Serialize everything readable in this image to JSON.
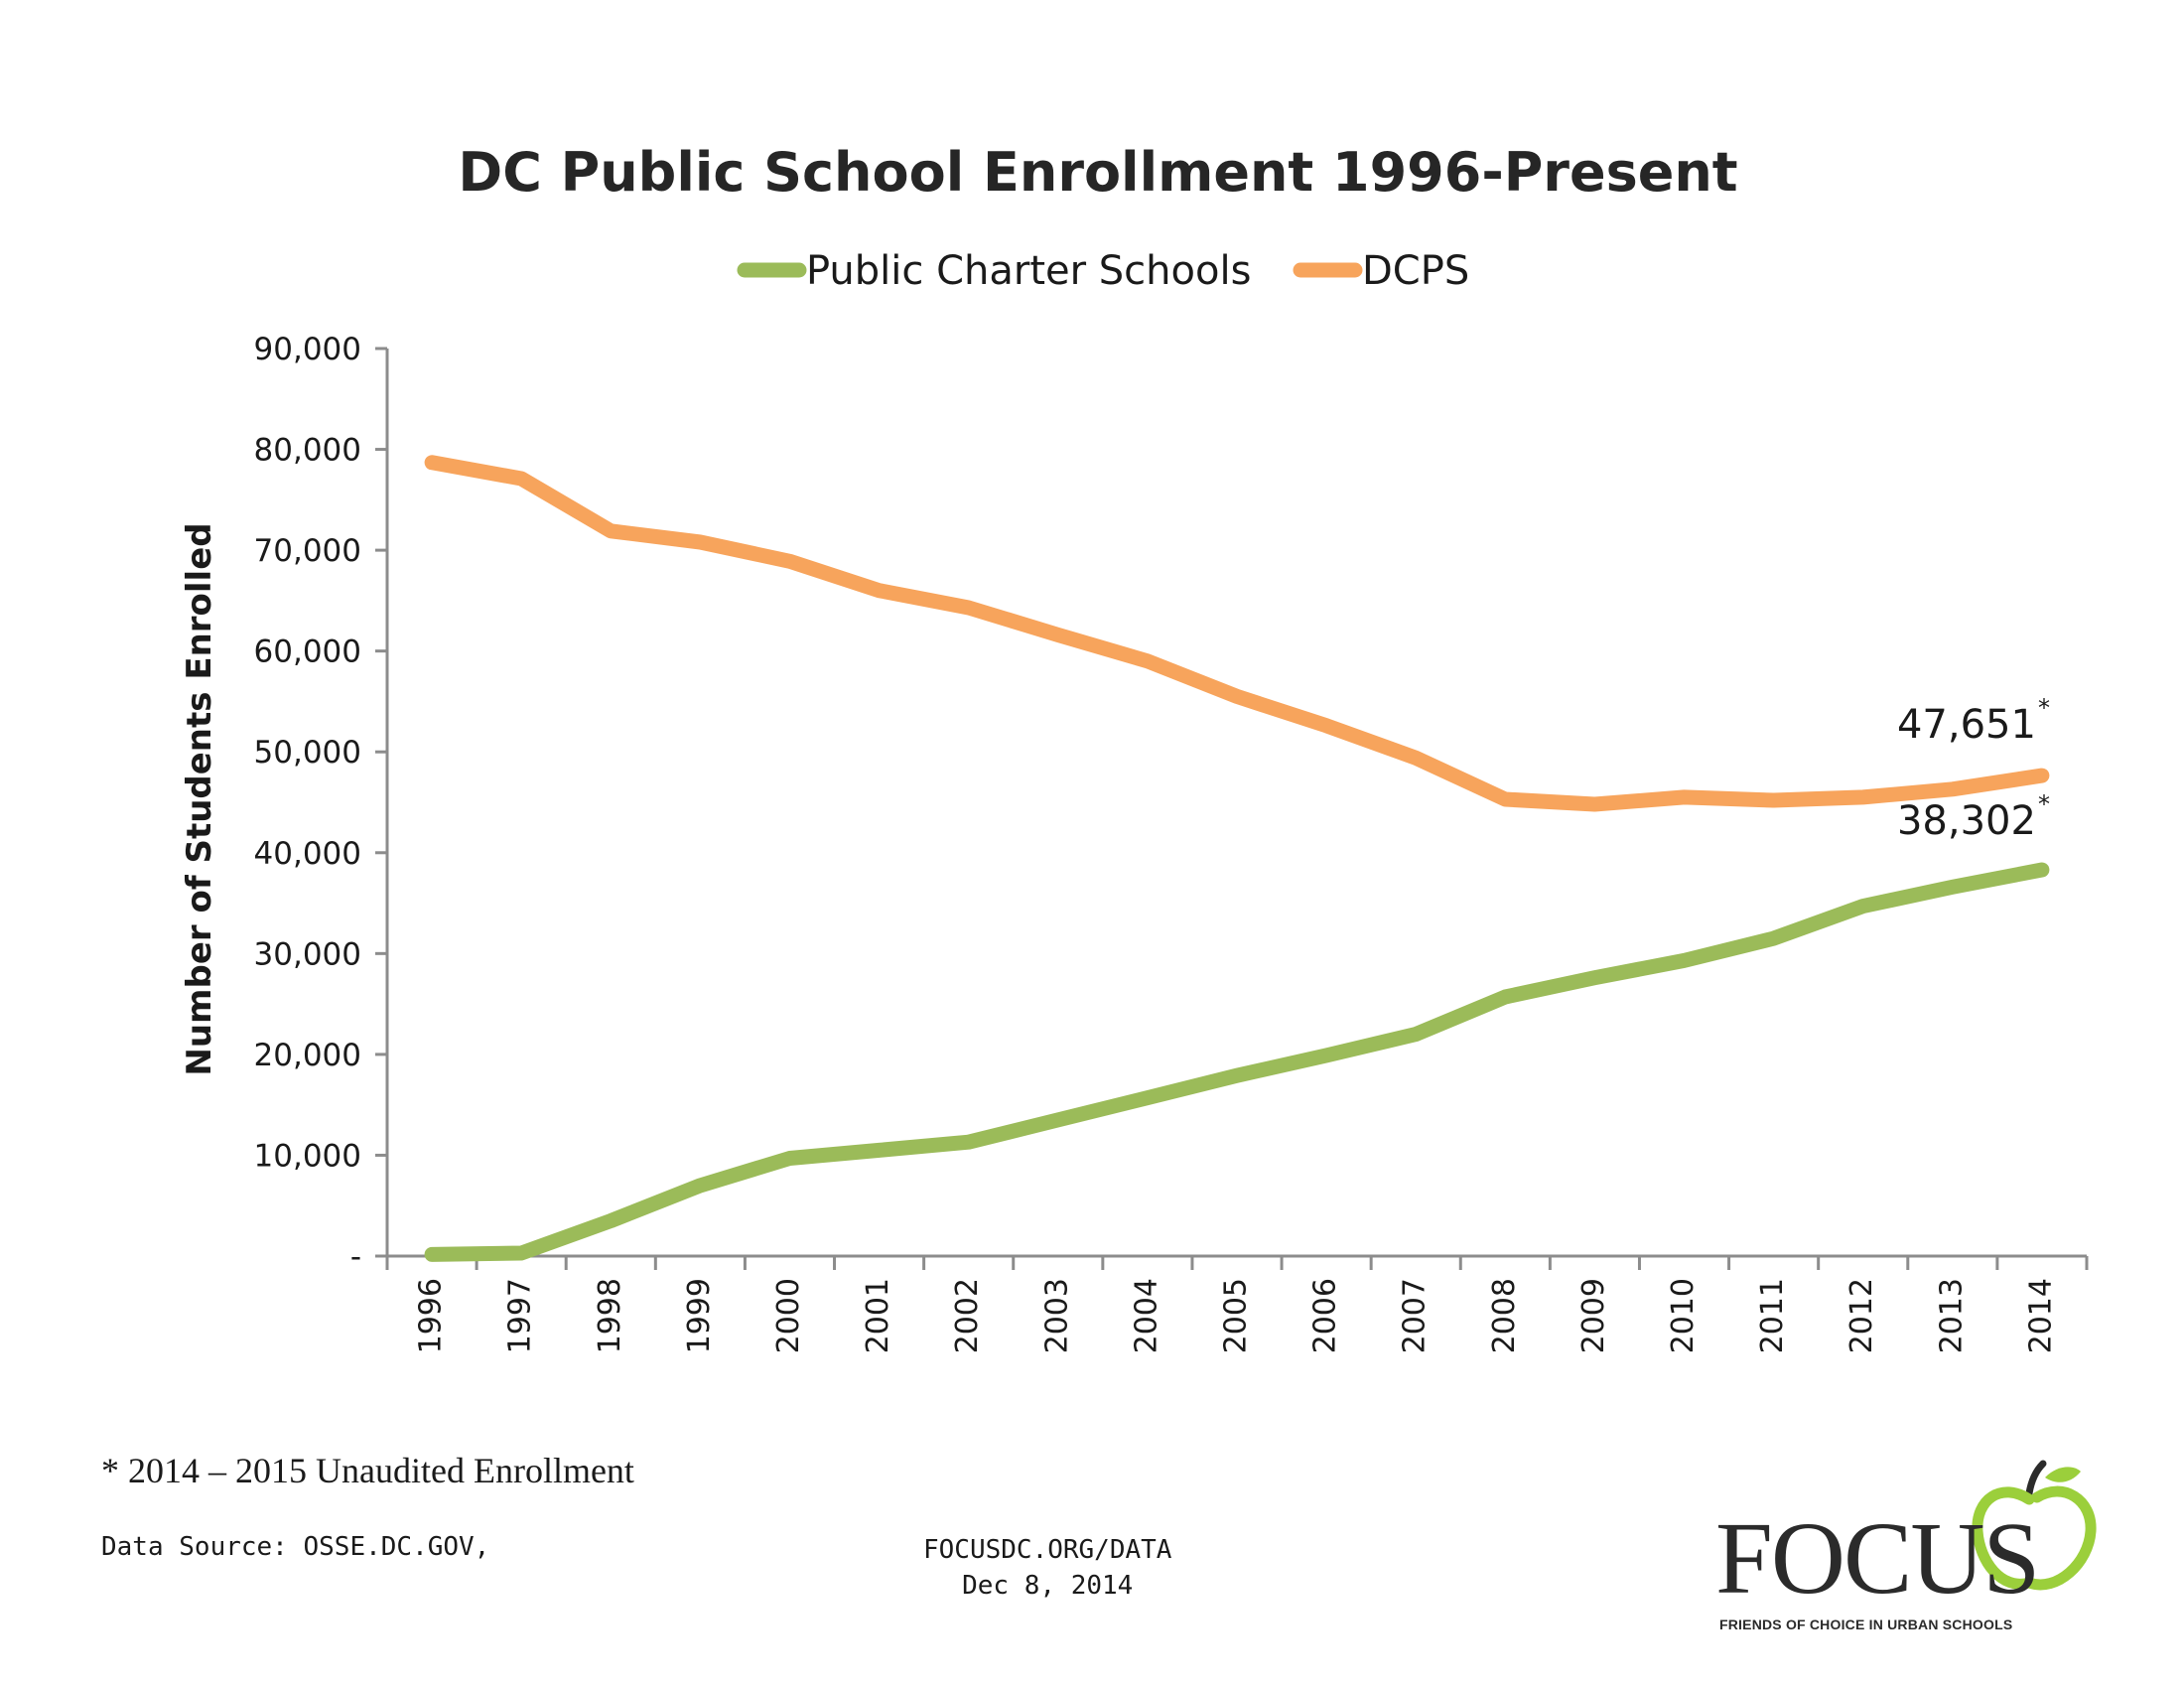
{
  "chart_data": {
    "type": "line",
    "title": "DC Public School Enrollment 1996-Present",
    "ylabel": "Number of Students Enrolled",
    "xlabel": "",
    "ylim": [
      0,
      90000
    ],
    "yticks": [
      "-",
      "10,000",
      "20,000",
      "30,000",
      "40,000",
      "50,000",
      "60,000",
      "70,000",
      "80,000",
      "90,000"
    ],
    "categories": [
      "1996",
      "1997",
      "1998",
      "1999",
      "2000",
      "2001",
      "2002",
      "2003",
      "2004",
      "2005",
      "2006",
      "2007",
      "2008",
      "2009",
      "2010",
      "2011",
      "2012",
      "2013",
      "2014"
    ],
    "grid": false,
    "legend": "top-center",
    "series": [
      {
        "name": "Public Charter Schools",
        "color": "#9bbb59",
        "values": [
          160,
          300,
          3500,
          7000,
          9700,
          10500,
          11300,
          13500,
          15700,
          17900,
          19900,
          22000,
          25700,
          27600,
          29300,
          31500,
          34700,
          36600,
          38302
        ],
        "end_label": "38,302",
        "end_mark": "*"
      },
      {
        "name": "DCPS",
        "color": "#f7a45c",
        "values": [
          78700,
          77100,
          71900,
          70800,
          68900,
          66000,
          64300,
          61600,
          59000,
          55500,
          52600,
          49400,
          45300,
          44800,
          45500,
          45200,
          45500,
          46300,
          47651
        ],
        "end_label": "47,651",
        "end_mark": "*"
      }
    ]
  },
  "footnote": "* 2014 – 2015 Unaudited Enrollment",
  "source": "Data Source: OSSE.DC.GOV,",
  "center_note": {
    "line1": "FOCUSDC.ORG/DATA",
    "line2": "Dec 8, 2014"
  },
  "logo": {
    "word": "FOCUS",
    "tagline": "FRIENDS OF CHOICE IN URBAN SCHOOLS",
    "apple_color": "#9bcf3b",
    "stem_color": "#2b2b2b"
  }
}
